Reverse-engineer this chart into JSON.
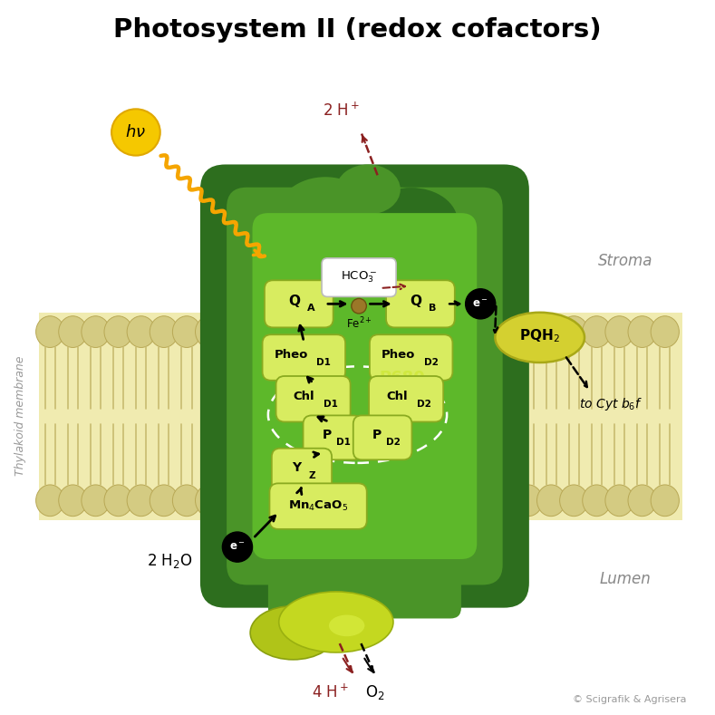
{
  "title": "Photosystem II (redox cofactors)",
  "title_fontsize": 21,
  "title_fontweight": "bold",
  "dark_green": "#2d6e1e",
  "mid_green": "#4a9428",
  "light_green": "#5db82a",
  "yellow_green": "#a8c800",
  "bright_yellow": "#d4e030",
  "sun_color": "#f5c800",
  "sun_edge": "#e0a800",
  "label_bg": "#d8ec60",
  "label_edge": "#8aaa20",
  "brown_red": "#8b2020",
  "membrane_bg": "#f0ebb0",
  "membrane_tail": "#d4c878",
  "membrane_head": "#d8cd7a",
  "pqh2_bg": "#d4d030",
  "pqh2_edge": "#a8a818",
  "stroma_color": "#888888",
  "lumen_color": "#888888",
  "membrane_label_color": "#999999",
  "copyright": "© Scigrafik & Agrisera",
  "stroma_label": "Stroma",
  "lumen_label": "Lumen",
  "membrane_label": "Thylakoid membrane"
}
